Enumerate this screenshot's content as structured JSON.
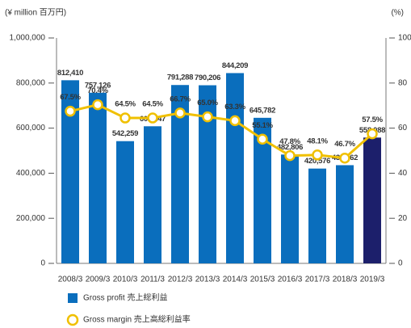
{
  "chart_data": {
    "type": "bar_line",
    "y_axis_label": "(¥ million 百万円)",
    "y2_axis_label": "(%)",
    "categories": [
      "2008/3",
      "2009/3",
      "2010/3",
      "2011/3",
      "2012/3",
      "2013/3",
      "2014/3",
      "2015/3",
      "2016/3",
      "2017/3",
      "2018/3",
      "2019/3"
    ],
    "series": [
      {
        "name": "Gross profit 売上総利益",
        "type": "bar",
        "color": "#0a6ebd",
        "colors": [
          "#0a6ebd",
          "#0a6ebd",
          "#0a6ebd",
          "#0a6ebd",
          "#0a6ebd",
          "#0a6ebd",
          "#0a6ebd",
          "#0a6ebd",
          "#0a6ebd",
          "#0a6ebd",
          "#0a6ebd",
          "#1c1f6b"
        ],
        "values": [
          812410,
          757126,
          542259,
          608247,
          791288,
          790206,
          844209,
          645782,
          482806,
          420576,
          435662,
          558088
        ],
        "value_labels": [
          "812,410",
          "757,126",
          "542,259",
          "608,247",
          "791,288",
          "790,206",
          "844,209",
          "645,782",
          "482,806",
          "420,576",
          "435,662",
          "558,088"
        ]
      },
      {
        "name": "Gross margin 売上高総利益率",
        "type": "line",
        "axis": "y2",
        "color": "#f0c000",
        "values": [
          67.5,
          70.4,
          64.5,
          64.5,
          66.7,
          65.0,
          63.3,
          55.1,
          47.8,
          48.1,
          46.7,
          57.5
        ],
        "value_labels": [
          "67.5%",
          "70.4%",
          "64.5%",
          "64.5%",
          "66.7%",
          "65.0%",
          "63.3%",
          "55.1%",
          "47.8%",
          "48.1%",
          "46.7%",
          "57.5%"
        ]
      }
    ],
    "ylim": [
      0,
      1000000
    ],
    "yticks": [
      {
        "value": 0,
        "label": "0"
      },
      {
        "value": 200000,
        "label": "200,000"
      },
      {
        "value": 400000,
        "label": "400,000"
      },
      {
        "value": 600000,
        "label": "600,000"
      },
      {
        "value": 800000,
        "label": "800,000"
      },
      {
        "value": 1000000,
        "label": "1,000,000"
      }
    ],
    "y2lim": [
      0,
      100
    ],
    "y2ticks": [
      0,
      20,
      40,
      60,
      80,
      100
    ]
  }
}
